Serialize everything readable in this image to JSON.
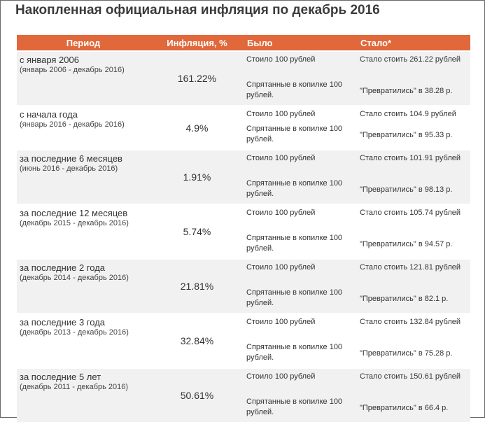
{
  "title": "Накопленная официальная инфляция по декабрь 2016",
  "table": {
    "headers": [
      "Период",
      "Инфляция, %",
      "Было",
      "Стало*"
    ],
    "rows": [
      {
        "period": "с января 2006",
        "range": "(январь 2006 - декабрь 2016)",
        "inflation": "161.22%",
        "was_top": "Стоило 100 рублей",
        "was_bottom": "Спрятанные в копилке 100 рублей.",
        "now_top": "Стало стоить 261.22 рублей",
        "now_bottom": "\"Превратились\" в 38.28 р."
      },
      {
        "period": "с начала года",
        "range": "(январь 2016 - декабрь 2016)",
        "inflation": "4.9%",
        "was_top": "Стоило 100 рублей",
        "was_bottom": "Спрятанные в копилке 100 рублей.",
        "now_top": "Стало стоить 104.9 рублей",
        "now_bottom": "\"Превратились\" в 95.33 р."
      },
      {
        "period": "за последние 6 месяцев",
        "range": "(июнь 2016 - декабрь 2016)",
        "inflation": "1.91%",
        "was_top": "Стоило 100 рублей",
        "was_bottom": "Спрятанные в копилке 100 рублей.",
        "now_top": "Стало стоить 101.91 рублей",
        "now_bottom": "\"Превратились\" в 98.13 р."
      },
      {
        "period": "за последние 12 месяцев",
        "range": "(декабрь 2015 - декабрь 2016)",
        "inflation": "5.74%",
        "was_top": "Стоило 100 рублей",
        "was_bottom": "Спрятанные в копилке 100 рублей.",
        "now_top": "Стало стоить 105.74 рублей",
        "now_bottom": "\"Превратились\" в 94.57 р."
      },
      {
        "period": "за последние 2 года",
        "range": "(декабрь 2014 - декабрь 2016)",
        "inflation": "21.81%",
        "was_top": "Стоило 100 рублей",
        "was_bottom": "Спрятанные в копилке 100 рублей.",
        "now_top": "Стало стоить 121.81 рублей",
        "now_bottom": "\"Превратились\" в 82.1 р."
      },
      {
        "period": "за последние 3 года",
        "range": "(декабрь 2013 - декабрь 2016)",
        "inflation": "32.84%",
        "was_top": "Стоило 100 рублей",
        "was_bottom": "Спрятанные в копилке 100 рублей.",
        "now_top": "Стало стоить 132.84 рублей",
        "now_bottom": "\"Превратились\" в 75.28 р."
      },
      {
        "period": "за последние 5 лет",
        "range": "(декабрь 2011 - декабрь 2016)",
        "inflation": "50.61%",
        "was_top": "Стоило 100 рублей",
        "was_bottom": "Спрятанные в копилке 100 рублей.",
        "now_top": "Стало стоить 150.61 рублей",
        "now_bottom": "\"Превратились\" в 66.4 р."
      }
    ]
  }
}
